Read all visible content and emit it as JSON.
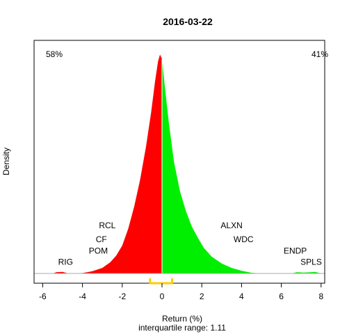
{
  "chart_data": {
    "type": "area",
    "title": "2016-03-22",
    "xlabel": "Return (%)",
    "ylabel": "Density",
    "subtitle": "interquartile range: 1.11",
    "xlim": [
      -6.3,
      8.5
    ],
    "ylim": [
      0,
      1.0
    ],
    "x_ticks": [
      -6,
      -4,
      -2,
      0,
      2,
      4,
      6,
      8
    ],
    "negative_share": "58%",
    "positive_share": "41%",
    "colors": {
      "negative": "#ff0000",
      "positive": "#00ee00",
      "negative_label": "#cc0000",
      "positive_label": "#009900",
      "iqr": "#ffcc00"
    },
    "iqr": [
      -0.6,
      0.51
    ],
    "density": [
      {
        "x": -5.5,
        "y": 0.0
      },
      {
        "x": -5.3,
        "y": 0.006
      },
      {
        "x": -5.0,
        "y": 0.007
      },
      {
        "x": -4.7,
        "y": 0.0
      },
      {
        "x": -4.0,
        "y": 0.002
      },
      {
        "x": -3.5,
        "y": 0.01
      },
      {
        "x": -3.0,
        "y": 0.025
      },
      {
        "x": -2.6,
        "y": 0.05
      },
      {
        "x": -2.3,
        "y": 0.08
      },
      {
        "x": -2.0,
        "y": 0.125
      },
      {
        "x": -1.7,
        "y": 0.2
      },
      {
        "x": -1.4,
        "y": 0.3
      },
      {
        "x": -1.1,
        "y": 0.42
      },
      {
        "x": -0.8,
        "y": 0.57
      },
      {
        "x": -0.55,
        "y": 0.72
      },
      {
        "x": -0.35,
        "y": 0.86
      },
      {
        "x": -0.2,
        "y": 0.95
      },
      {
        "x": -0.1,
        "y": 0.98
      },
      {
        "x": 0.0,
        "y": 0.96
      },
      {
        "x": 0.15,
        "y": 0.83
      },
      {
        "x": 0.35,
        "y": 0.67
      },
      {
        "x": 0.6,
        "y": 0.5
      },
      {
        "x": 0.9,
        "y": 0.37
      },
      {
        "x": 1.2,
        "y": 0.28
      },
      {
        "x": 1.5,
        "y": 0.21
      },
      {
        "x": 1.8,
        "y": 0.16
      },
      {
        "x": 2.1,
        "y": 0.115
      },
      {
        "x": 2.5,
        "y": 0.075
      },
      {
        "x": 3.0,
        "y": 0.045
      },
      {
        "x": 3.5,
        "y": 0.025
      },
      {
        "x": 4.0,
        "y": 0.012
      },
      {
        "x": 4.5,
        "y": 0.003
      },
      {
        "x": 5.0,
        "y": 0.0
      },
      {
        "x": 6.5,
        "y": 0.0
      },
      {
        "x": 6.8,
        "y": 0.006
      },
      {
        "x": 7.1,
        "y": 0.004
      },
      {
        "x": 7.4,
        "y": 0.005
      },
      {
        "x": 7.7,
        "y": 0.007
      },
      {
        "x": 8.0,
        "y": 0.0
      }
    ],
    "annotations": [
      {
        "text": "RIG",
        "x": -4.85,
        "y": 0.052
      },
      {
        "text": "POM",
        "x": -3.2,
        "y": 0.102
      },
      {
        "text": "CF",
        "x": -3.05,
        "y": 0.153
      },
      {
        "text": "RCL",
        "x": -2.75,
        "y": 0.215
      },
      {
        "text": "ALXN",
        "x": 3.5,
        "y": 0.215
      },
      {
        "text": "WDC",
        "x": 4.1,
        "y": 0.153
      },
      {
        "text": "ENDP",
        "x": 6.7,
        "y": 0.102
      },
      {
        "text": "SPLS",
        "x": 7.5,
        "y": 0.052
      }
    ]
  }
}
